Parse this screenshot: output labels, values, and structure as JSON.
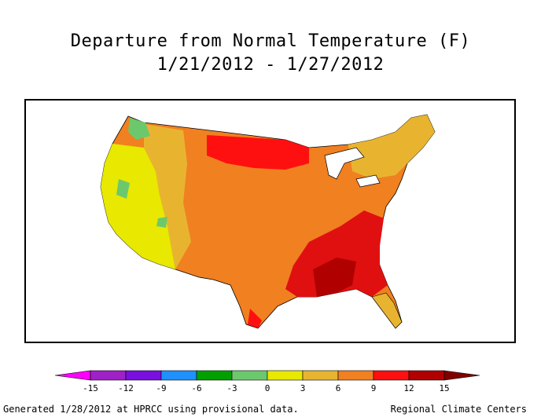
{
  "title": {
    "line1": "Departure from Normal Temperature (F)",
    "line2": "1/21/2012 - 1/27/2012"
  },
  "legend": {
    "ticks": [
      "-15",
      "-12",
      "-9",
      "-6",
      "-3",
      "0",
      "3",
      "6",
      "9",
      "12",
      "15"
    ],
    "colors": [
      "#ff00ff",
      "#a020c8",
      "#7a10e0",
      "#1e90ff",
      "#00a000",
      "#6cc86c",
      "#e8e800",
      "#e8b430",
      "#f08020",
      "#ff1010",
      "#b00000",
      "#800000"
    ]
  },
  "map": {
    "region": "Contiguous United States",
    "colors": {
      "warm_high": "#ff1010",
      "warm_mid": "#f08020",
      "warm_low": "#e8b430",
      "neutral": "#e8e800",
      "cool_low": "#6cc86c"
    }
  },
  "footer": {
    "left": "Generated 1/28/2012 at HPRCC using provisional data.",
    "right": "Regional Climate Centers"
  }
}
